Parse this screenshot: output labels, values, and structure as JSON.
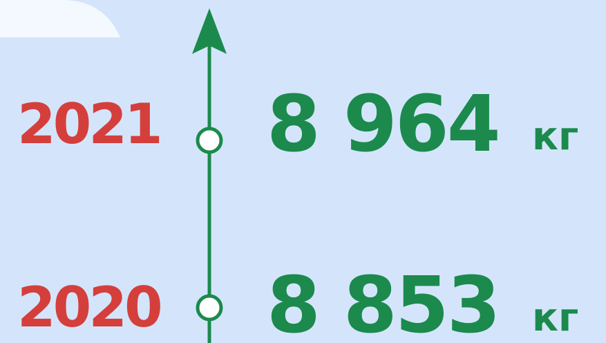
{
  "items": [
    {
      "year": "2021",
      "value": "8 964",
      "unit": "кг"
    },
    {
      "year": "2020",
      "value": "8 853",
      "unit": "кг"
    }
  ]
}
